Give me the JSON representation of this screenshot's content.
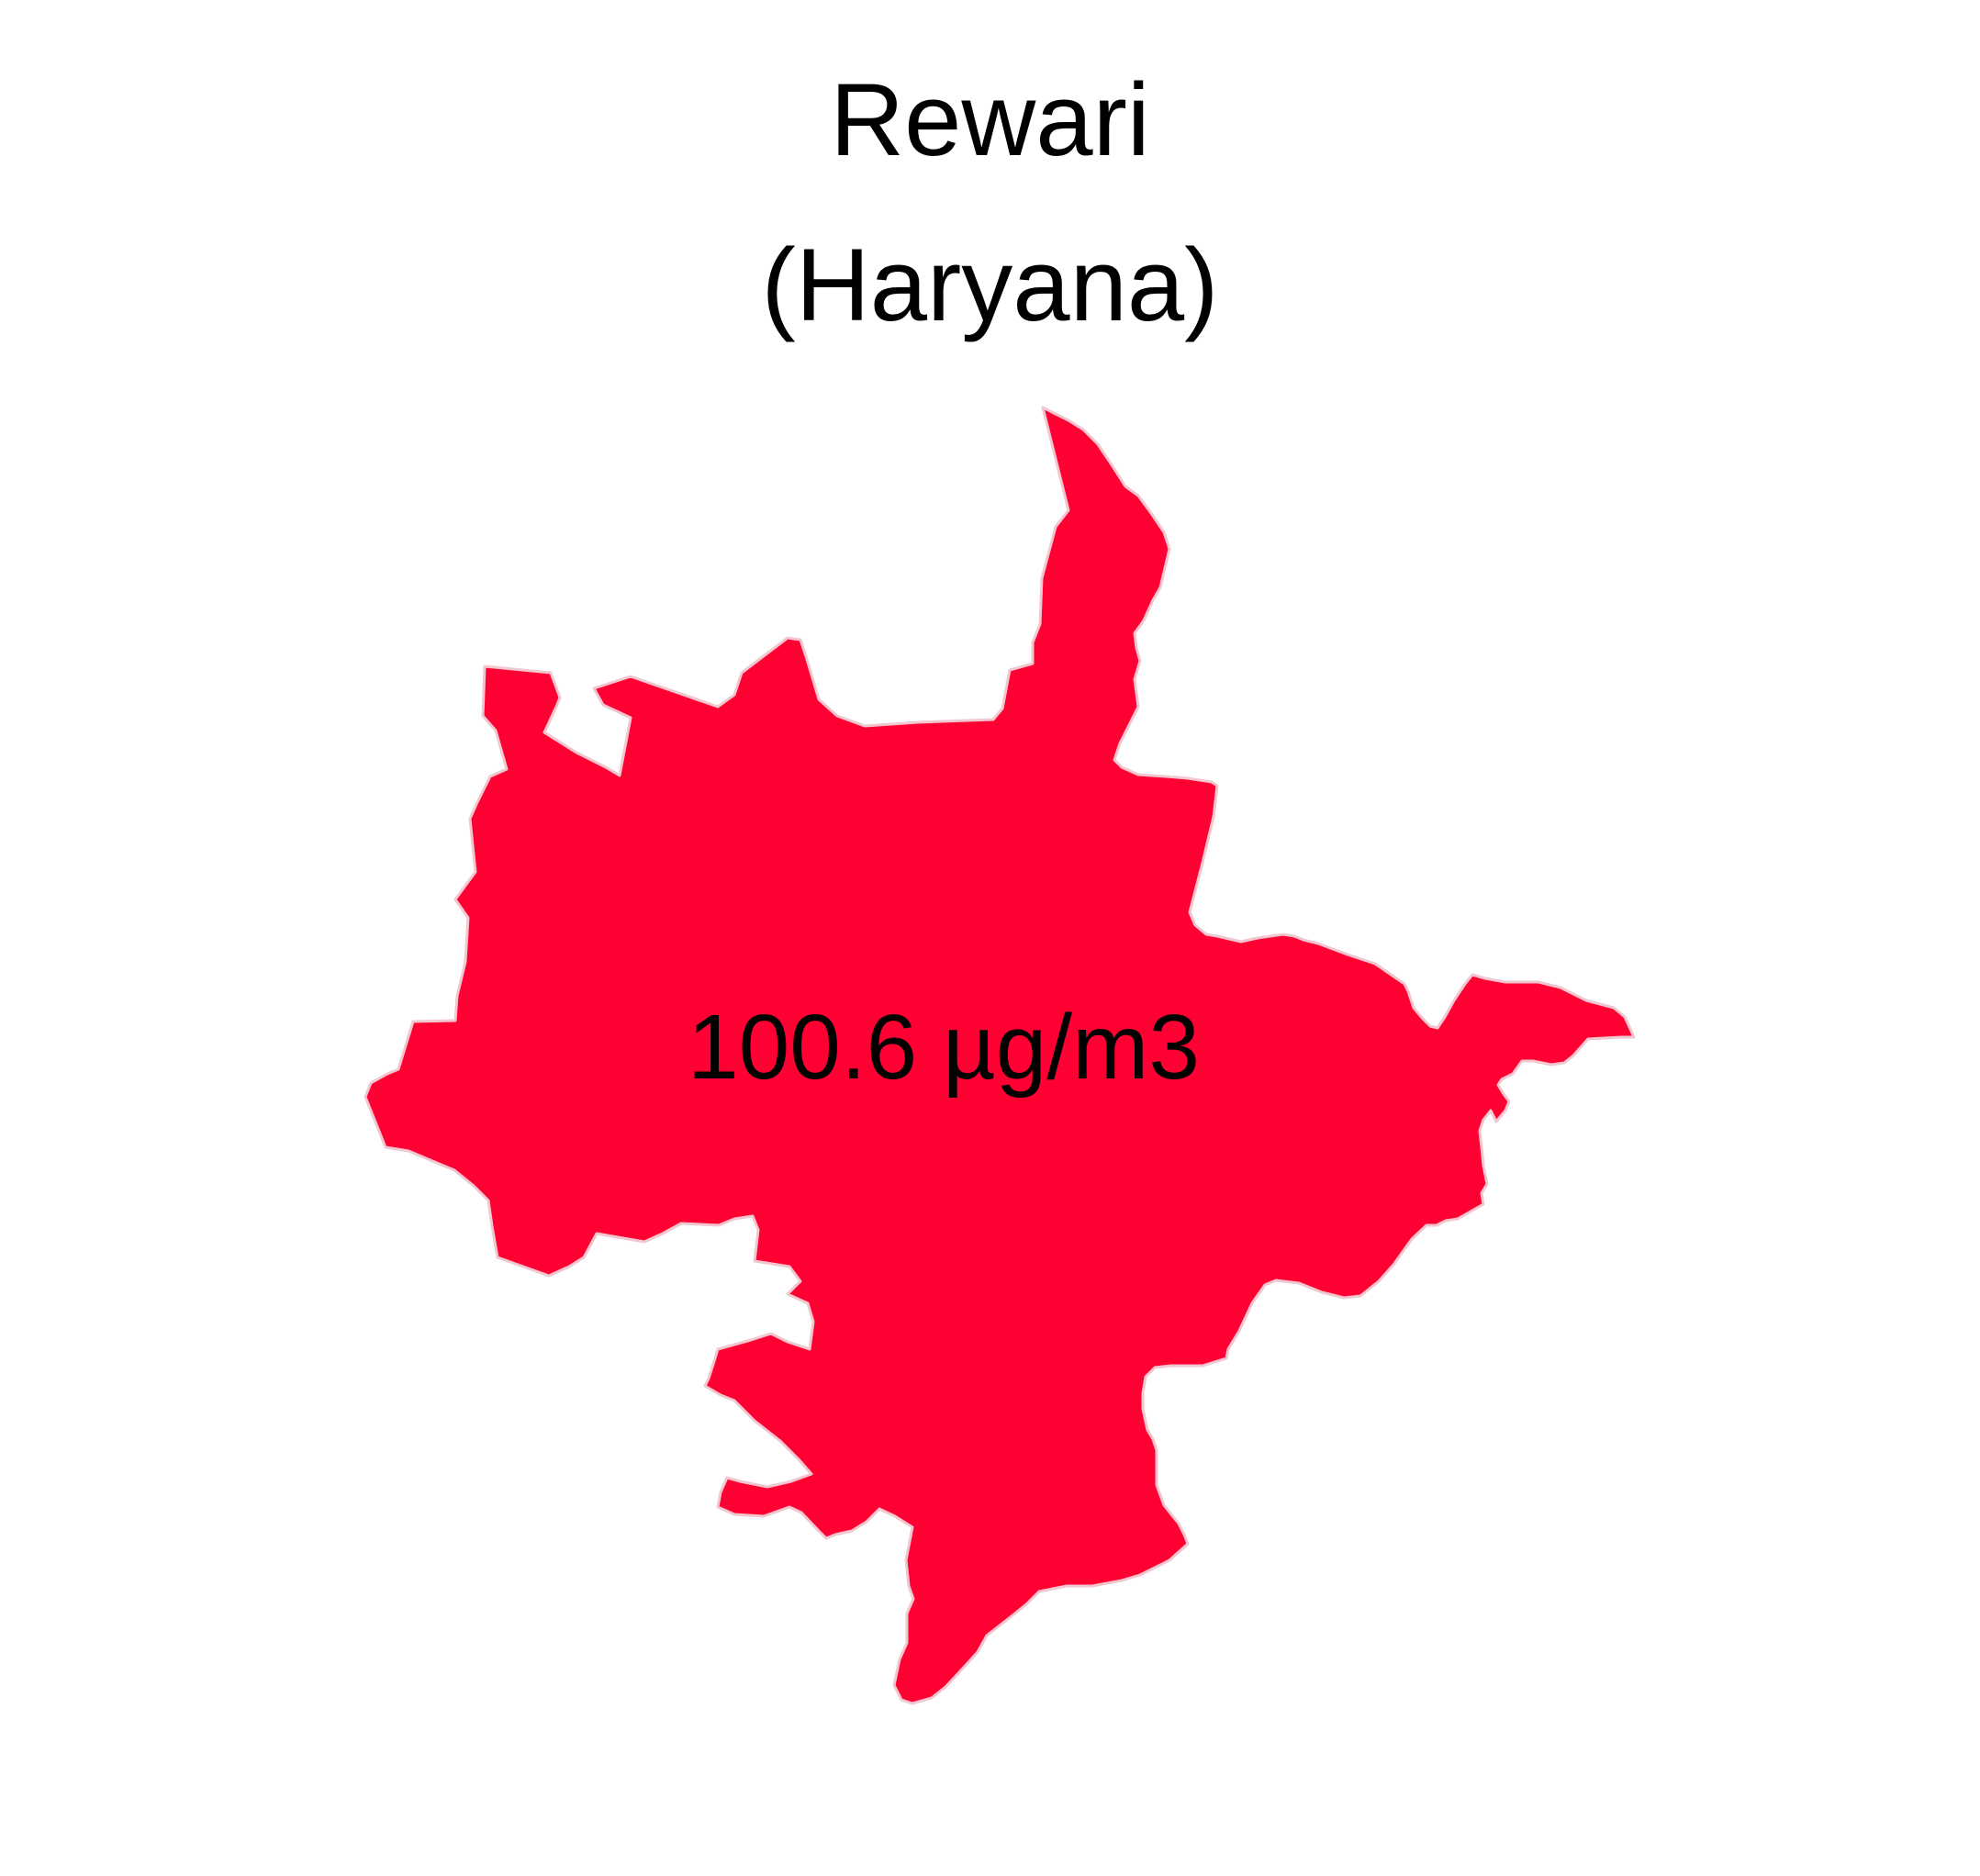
{
  "map": {
    "title_line1": "Rewari",
    "title_line2": "(Haryana)",
    "region_value": "100.6 µg/m3",
    "region_fill": "#FF0033",
    "region_outline": "#F2C6CF"
  }
}
